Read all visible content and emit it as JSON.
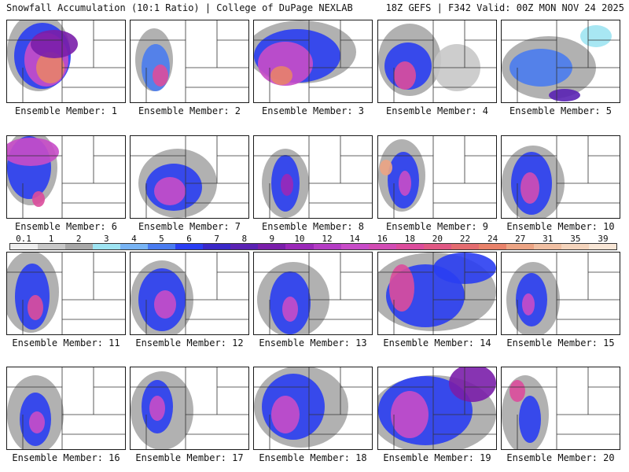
{
  "header": {
    "title_left": "Snowfall Accumulation (10:1 Ratio) | College of DuPage NEXLAB",
    "title_right": "18Z GEFS | F342 Valid: 00Z MON NOV 24 2025"
  },
  "panels": [
    {
      "label": "Ensemble Member: 1"
    },
    {
      "label": "Ensemble Member: 2"
    },
    {
      "label": "Ensemble Member: 3"
    },
    {
      "label": "Ensemble Member: 4"
    },
    {
      "label": "Ensemble Member: 5"
    },
    {
      "label": "Ensemble Member: 6"
    },
    {
      "label": "Ensemble Member: 7"
    },
    {
      "label": "Ensemble Member: 8"
    },
    {
      "label": "Ensemble Member: 9"
    },
    {
      "label": "Ensemble Member: 10"
    },
    {
      "label": "Ensemble Member: 11"
    },
    {
      "label": "Ensemble Member: 12"
    },
    {
      "label": "Ensemble Member: 13"
    },
    {
      "label": "Ensemble Member: 14"
    },
    {
      "label": "Ensemble Member: 15"
    },
    {
      "label": "Ensemble Member: 16"
    },
    {
      "label": "Ensemble Member: 17"
    },
    {
      "label": "Ensemble Member: 18"
    },
    {
      "label": "Ensemble Member: 19"
    },
    {
      "label": "Ensemble Member: 20"
    }
  ],
  "colorbar": {
    "labels": [
      "0.1",
      "1",
      "2",
      "3",
      "4",
      "5",
      "6",
      "7",
      "8",
      "9",
      "10",
      "12",
      "14",
      "16",
      "18",
      "20",
      "22",
      "24",
      "27",
      "31",
      "35",
      "39"
    ],
    "colors": [
      "#eeeeee",
      "#c8c8c8",
      "#a8a8a8",
      "#9ee4f2",
      "#78b4f4",
      "#4a7cf0",
      "#2a3ef2",
      "#3a28c8",
      "#5a22b4",
      "#7a1eaa",
      "#9a28b8",
      "#b43cc4",
      "#c84cc8",
      "#d24cb4",
      "#dc4c9c",
      "#e05884",
      "#e46c70",
      "#e8826a",
      "#eca484",
      "#f0bfa2",
      "#f4d4bc",
      "#f8e6d6"
    ]
  }
}
